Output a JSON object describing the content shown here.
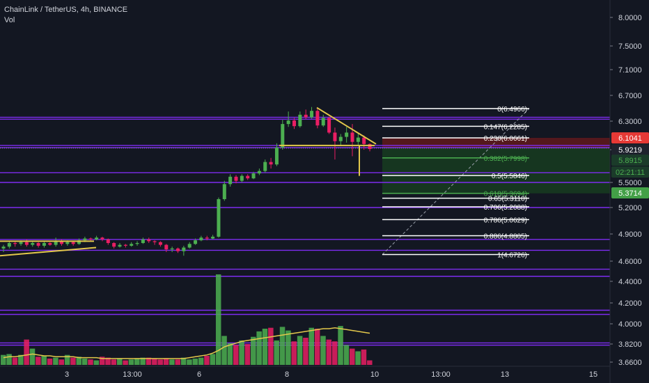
{
  "header": {
    "symbol_title": "ChainLink / TetherUS, 4h, BINANCE",
    "indicator_label": "Vol"
  },
  "colors": {
    "background": "#131722",
    "up": "#4caf50",
    "down": "#e91e63",
    "purple": "#7e2cf0",
    "yellow": "#e3c84b",
    "fib_white": "#ffffff",
    "fib_green": "#4caf50",
    "zone_green": "#1b5e20",
    "zone_red": "#8b1a1a",
    "axis_text": "#d1d4dc"
  },
  "chart_data": {
    "type": "candlestick",
    "title": "ChainLink / TetherUS, 4h, BINANCE",
    "price_axis": {
      "ticks": [
        "8.0000",
        "7.5000",
        "7.1000",
        "6.7000",
        "6.3000",
        "5.9000",
        "5.5000",
        "5.2000",
        "4.9000",
        "4.6000",
        "4.4000",
        "4.2000",
        "4.0000",
        "3.8200",
        "3.6600"
      ],
      "tick_values": [
        8.0,
        7.5,
        7.1,
        6.7,
        6.3,
        5.9,
        5.5,
        5.2,
        4.9,
        4.6,
        4.4,
        4.2,
        4.0,
        3.82,
        3.66
      ],
      "scale": "non-linear (as printed)"
    },
    "time_axis": {
      "ticks": [
        "3",
        "13:00",
        "6",
        "8",
        "10",
        "13:00",
        "13",
        "15"
      ]
    },
    "price_labels": [
      {
        "text": "6.1041",
        "value": 6.1041,
        "kind": "red"
      },
      {
        "text": "5.9219",
        "value": 5.9219,
        "kind": "dark"
      },
      {
        "text": "5.8915",
        "value": 5.8915,
        "kind": "dark-green"
      },
      {
        "text": "02:21:11",
        "value": 5.69,
        "kind": "dark-green"
      },
      {
        "text": "5.3714",
        "value": 5.3714,
        "kind": "green"
      }
    ],
    "fibonacci": [
      {
        "label": "0(6.4966)",
        "value": 6.4966,
        "color": "#ffffff"
      },
      {
        "label": "0.147(6.2285)",
        "value": 6.2285,
        "color": "#ffffff"
      },
      {
        "label": "0.236(6.0661)",
        "value": 6.0661,
        "color": "#ffffff"
      },
      {
        "label": "0.382(5.7998)",
        "value": 5.7998,
        "color": "#4caf50"
      },
      {
        "label": "0.5(5.5846)",
        "value": 5.5846,
        "color": "#ffffff"
      },
      {
        "label": "0.618(5.3694)",
        "value": 5.3694,
        "color": "#4caf50"
      },
      {
        "label": "0.65(5.3110)",
        "value": 5.311,
        "color": "#ffffff"
      },
      {
        "label": "0.706(5.2088)",
        "value": 5.2088,
        "color": "#ffffff"
      },
      {
        "label": "0.786(5.0629)",
        "value": 5.0629,
        "color": "#ffffff"
      },
      {
        "label": "0.886(4.8805)",
        "value": 4.8805,
        "color": "#ffffff"
      },
      {
        "label": "1(4.6726)",
        "value": 4.6726,
        "color": "#ffffff"
      }
    ],
    "horizontal_levels": [
      6.36,
      6.33,
      5.96,
      5.93,
      5.62,
      5.5,
      5.2,
      4.84,
      4.72,
      4.52,
      4.45,
      4.13,
      4.09,
      3.83,
      3.81
    ],
    "candles": [
      [
        4.74,
        4.76,
        4.7,
        4.78
      ],
      [
        4.76,
        4.8,
        4.74,
        4.82
      ],
      [
        4.8,
        4.79,
        4.76,
        4.82
      ],
      [
        4.79,
        4.81,
        4.77,
        4.83
      ],
      [
        4.81,
        4.78,
        4.76,
        4.84
      ],
      [
        4.78,
        4.8,
        4.76,
        4.82
      ],
      [
        4.8,
        4.77,
        4.75,
        4.81
      ],
      [
        4.77,
        4.8,
        4.75,
        4.82
      ],
      [
        4.8,
        4.78,
        4.77,
        4.81
      ],
      [
        4.78,
        4.82,
        4.76,
        4.86
      ],
      [
        4.82,
        4.79,
        4.77,
        4.84
      ],
      [
        4.79,
        4.81,
        4.77,
        4.83
      ],
      [
        4.81,
        4.79,
        4.77,
        4.82
      ],
      [
        4.79,
        4.83,
        4.78,
        4.85
      ],
      [
        4.83,
        4.85,
        4.81,
        4.87
      ],
      [
        4.85,
        4.84,
        4.82,
        4.86
      ],
      [
        4.84,
        4.86,
        4.83,
        4.88
      ],
      [
        4.86,
        4.84,
        4.82,
        4.87
      ],
      [
        4.84,
        4.8,
        4.78,
        4.85
      ],
      [
        4.8,
        4.76,
        4.74,
        4.81
      ],
      [
        4.76,
        4.78,
        4.75,
        4.8
      ],
      [
        4.78,
        4.77,
        4.75,
        4.79
      ],
      [
        4.77,
        4.79,
        4.76,
        4.81
      ],
      [
        4.79,
        4.8,
        4.77,
        4.82
      ],
      [
        4.8,
        4.84,
        4.79,
        4.86
      ],
      [
        4.84,
        4.82,
        4.8,
        4.86
      ],
      [
        4.82,
        4.81,
        4.78,
        4.83
      ],
      [
        4.81,
        4.78,
        4.76,
        4.82
      ],
      [
        4.78,
        4.73,
        4.7,
        4.79
      ],
      [
        4.73,
        4.74,
        4.7,
        4.76
      ],
      [
        4.74,
        4.71,
        4.69,
        4.75
      ],
      [
        4.71,
        4.75,
        4.66,
        4.77
      ],
      [
        4.75,
        4.79,
        4.74,
        4.81
      ],
      [
        4.79,
        4.83,
        4.78,
        4.85
      ],
      [
        4.83,
        4.86,
        4.82,
        4.88
      ],
      [
        4.86,
        4.85,
        4.83,
        4.88
      ],
      [
        4.85,
        4.87,
        4.84,
        4.89
      ],
      [
        4.87,
        5.3,
        4.86,
        5.32
      ],
      [
        5.3,
        5.48,
        5.28,
        5.52
      ],
      [
        5.48,
        5.57,
        5.45,
        5.6
      ],
      [
        5.57,
        5.52,
        5.49,
        5.59
      ],
      [
        5.52,
        5.58,
        5.5,
        5.6
      ],
      [
        5.58,
        5.55,
        5.53,
        5.6
      ],
      [
        5.55,
        5.61,
        5.54,
        5.63
      ],
      [
        5.61,
        5.64,
        5.59,
        5.67
      ],
      [
        5.64,
        5.75,
        5.62,
        5.78
      ],
      [
        5.75,
        5.72,
        5.67,
        5.8
      ],
      [
        5.72,
        5.93,
        5.7,
        5.99
      ],
      [
        5.93,
        6.26,
        5.9,
        6.32
      ],
      [
        6.26,
        6.31,
        6.22,
        6.45
      ],
      [
        6.31,
        6.23,
        6.19,
        6.35
      ],
      [
        6.23,
        6.4,
        6.21,
        6.45
      ],
      [
        6.4,
        6.36,
        6.33,
        6.48
      ],
      [
        6.36,
        6.46,
        6.34,
        6.52
      ],
      [
        6.46,
        6.24,
        6.2,
        6.5
      ],
      [
        6.24,
        6.35,
        6.22,
        6.4
      ],
      [
        6.35,
        6.14,
        6.12,
        6.37
      ],
      [
        6.14,
        6.02,
        5.78,
        6.21
      ],
      [
        6.02,
        6.08,
        5.95,
        6.12
      ],
      [
        6.08,
        6.14,
        6.0,
        6.22
      ],
      [
        6.14,
        6.01,
        5.82,
        6.26
      ],
      [
        6.01,
        6.07,
        5.97,
        6.13
      ],
      [
        6.07,
        5.98,
        5.9,
        6.1
      ],
      [
        5.98,
        5.91,
        5.88,
        5.99
      ]
    ],
    "volume": [
      0.11,
      0.12,
      0.08,
      0.11,
      0.28,
      0.18,
      0.09,
      0.1,
      0.07,
      0.08,
      0.06,
      0.11,
      0.08,
      0.09,
      0.07,
      0.06,
      0.05,
      0.09,
      0.08,
      0.06,
      0.07,
      0.05,
      0.06,
      0.07,
      0.08,
      0.08,
      0.07,
      0.06,
      0.07,
      0.06,
      0.06,
      0.08,
      0.06,
      0.07,
      0.08,
      0.1,
      0.12,
      1.0,
      0.32,
      0.24,
      0.22,
      0.27,
      0.23,
      0.31,
      0.37,
      0.4,
      0.41,
      0.27,
      0.42,
      0.38,
      0.26,
      0.32,
      0.3,
      0.41,
      0.4,
      0.32,
      0.28,
      0.26,
      0.43,
      0.22,
      0.18,
      0.15,
      0.17,
      0.05
    ],
    "volume_ma": [
      0.08,
      0.09,
      0.09,
      0.1,
      0.11,
      0.12,
      0.11,
      0.1,
      0.1,
      0.09,
      0.09,
      0.09,
      0.09,
      0.08,
      0.08,
      0.08,
      0.08,
      0.07,
      0.07,
      0.07,
      0.07,
      0.07,
      0.07,
      0.07,
      0.07,
      0.07,
      0.07,
      0.07,
      0.07,
      0.07,
      0.07,
      0.07,
      0.08,
      0.09,
      0.1,
      0.11,
      0.13,
      0.16,
      0.2,
      0.22,
      0.24,
      0.26,
      0.27,
      0.28,
      0.29,
      0.3,
      0.31,
      0.32,
      0.33,
      0.34,
      0.35,
      0.36,
      0.37,
      0.38,
      0.39,
      0.4,
      0.4,
      0.41,
      0.4,
      0.39,
      0.38,
      0.37,
      0.36,
      0.35
    ]
  }
}
